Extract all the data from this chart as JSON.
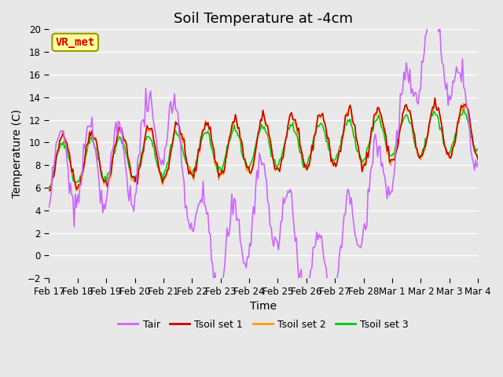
{
  "title": "Soil Temperature at -4cm",
  "xlabel": "Time",
  "ylabel": "Temperature (C)",
  "ylim": [
    -2,
    20
  ],
  "yticks": [
    -2,
    0,
    2,
    4,
    6,
    8,
    10,
    12,
    14,
    16,
    18,
    20
  ],
  "annotation_text": "VR_met",
  "annotation_color": "#cc0000",
  "annotation_bg": "#ffff99",
  "annotation_border": "#999900",
  "bg_color": "#e8e8e8",
  "colors": {
    "Tair": "#cc66ff",
    "Tsoil_1": "#cc0000",
    "Tsoil_2": "#ff9900",
    "Tsoil_3": "#00cc00"
  },
  "legend_labels": [
    "Tair",
    "Tsoil set 1",
    "Tsoil set 2",
    "Tsoil set 3"
  ],
  "n_points": 360,
  "x_tick_labels": [
    "Feb 17",
    "Feb 18",
    "Feb 19",
    "Feb 20",
    "Feb 21",
    "Feb 22",
    "Feb 23",
    "Feb 24",
    "Feb 25",
    "Feb 26",
    "Feb 27",
    "Feb 28",
    "Mar 1",
    "Mar 2",
    "Mar 3",
    "Mar 4"
  ],
  "title_fontsize": 13,
  "axis_fontsize": 10,
  "tick_fontsize": 8.5
}
